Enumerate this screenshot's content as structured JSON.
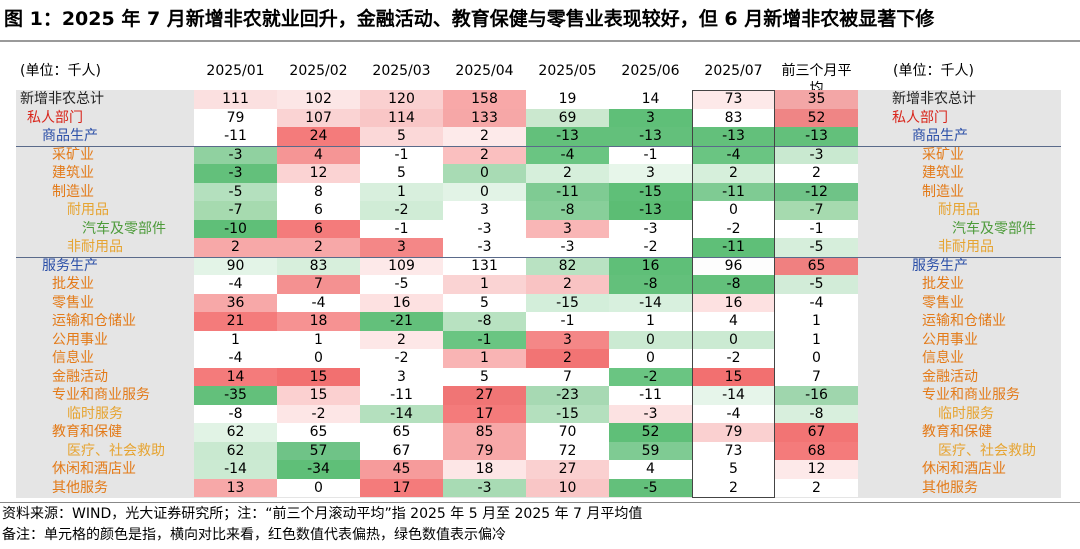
{
  "title": "图 1：2025 年 7 月新增非农就业回升，金融活动、教育保健与零售业表现较好，但 6 月新增非农被显著下修",
  "unit_label": "(单位：千人)",
  "notes": [
    "资料来源：WIND，光大证券研究所；注：“前三个月滚动平均”指 2025 年 5 月至 2025 年 7 月平均值",
    "备注：单元格的颜色是指，横向对比来看，红色数值代表偏热，绿色数值表示偏冷"
  ],
  "colors": {
    "label_default": "#222222",
    "label_blue": "#2b4fa8",
    "label_orange": "#e37a18",
    "label_yellow": "#e6a431",
    "label_green": "#4d9b3a",
    "label_red": "#d9261c"
  },
  "chart_data": {
    "type": "table",
    "columns": [
      "2025/01",
      "2025/02",
      "2025/03",
      "2025/04",
      "2025/05",
      "2025/06",
      "2025/07",
      "前三个月平均"
    ],
    "rows": [
      {
        "label": "新增非农总计",
        "style": "default",
        "level": 0,
        "values": [
          "111",
          "102",
          "120",
          "158",
          "19",
          "14",
          "73",
          "35"
        ],
        "colors": [
          "#fbe0e0",
          "#fce6e6",
          "#fad0d0",
          "#f8a8a8",
          "#ffffff",
          "#ffffff",
          "#fde9e9",
          "#f3a6a6"
        ]
      },
      {
        "label": "私人部门",
        "style": "red",
        "level": 1,
        "values": [
          "79",
          "107",
          "114",
          "133",
          "69",
          "3",
          "83",
          "52"
        ],
        "colors": [
          "#ffffff",
          "#fad3d3",
          "#f9c6c6",
          "#f6a7a7",
          "#cbe8cf",
          "#5fbf78",
          "#ffffff",
          "#ef8585"
        ]
      },
      {
        "label": "商品生产",
        "style": "blue",
        "level": 2,
        "values": [
          "-11",
          "24",
          "5",
          "2",
          "-13",
          "-13",
          "-13",
          "-13"
        ],
        "colors": [
          "#ffffff",
          "#f47b7b",
          "#fbd8d8",
          "#fdeaea",
          "#63c07b",
          "#63c07b",
          "#63c07b",
          "#63c07b"
        ]
      },
      {
        "label": "采矿业",
        "style": "orange",
        "level": 3,
        "values": [
          "-3",
          "4",
          "-1",
          "2",
          "-4",
          "-1",
          "-4",
          "-3"
        ],
        "colors": [
          "#90d1a0",
          "#f59595",
          "#ffffff",
          "#fabfbf",
          "#6ac582",
          "#ffffff",
          "#6ac582",
          "#c9e9d0"
        ]
      },
      {
        "label": "建筑业",
        "style": "orange",
        "level": 3,
        "values": [
          "-3",
          "12",
          "5",
          "0",
          "2",
          "3",
          "2",
          "2"
        ],
        "colors": [
          "#63c07b",
          "#fbd3d3",
          "#ffffff",
          "#a8dbb4",
          "#d6efdb",
          "#e7f6ea",
          "#d6efdb",
          "#ffffff"
        ]
      },
      {
        "label": "制造业",
        "style": "orange",
        "level": 3,
        "values": [
          "-5",
          "8",
          "1",
          "0",
          "-11",
          "-15",
          "-11",
          "-12"
        ],
        "colors": [
          "#b4e0be",
          "#ffffff",
          "#d8efdd",
          "#e2f3e6",
          "#7fcb93",
          "#5fbf78",
          "#7fcb93",
          "#6fc387"
        ]
      },
      {
        "label": "耐用品",
        "style": "yellow",
        "level": 4,
        "values": [
          "-7",
          "6",
          "-2",
          "3",
          "-8",
          "-13",
          "0",
          "-7"
        ],
        "colors": [
          "#a6daaf",
          "#ffffff",
          "#d0ecd6",
          "#ffffff",
          "#88cf9a",
          "#5cbd74",
          "#ffffff",
          "#a6daaf"
        ]
      },
      {
        "label": "汽车及零部件",
        "style": "green",
        "level": 5,
        "values": [
          "-10",
          "6",
          "-1",
          "-3",
          "3",
          "-3",
          "-2",
          "-1"
        ],
        "colors": [
          "#5fbf78",
          "#f47b7b",
          "#ffffff",
          "#ffffff",
          "#f9b6b6",
          "#ffffff",
          "#ffffff",
          "#ffffff"
        ]
      },
      {
        "label": "非耐用品",
        "style": "yellow",
        "level": 4,
        "values": [
          "2",
          "2",
          "3",
          "-3",
          "-3",
          "-2",
          "-11",
          "-5"
        ],
        "colors": [
          "#f7a8a8",
          "#f7a8a8",
          "#f48787",
          "#ffffff",
          "#ffffff",
          "#ffffff",
          "#5fbf78",
          "#d6eedb"
        ]
      },
      {
        "label": "服务生产",
        "style": "blue",
        "level": 2,
        "values": [
          "90",
          "83",
          "109",
          "131",
          "82",
          "16",
          "96",
          "65"
        ],
        "colors": [
          "#e3f4e7",
          "#d7efdc",
          "#fde9e9",
          "#ffffff",
          "#b9e2c2",
          "#5fbf78",
          "#fdfdfd",
          "#f08080"
        ]
      },
      {
        "label": "批发业",
        "style": "orange",
        "level": 3,
        "values": [
          "-4",
          "7",
          "-5",
          "1",
          "2",
          "-8",
          "-8",
          "-5"
        ],
        "colors": [
          "#ffffff",
          "#f49191",
          "#ffffff",
          "#fad3d3",
          "#f9c3c3",
          "#63c07b",
          "#63c07b",
          "#d2ecd8"
        ]
      },
      {
        "label": "零售业",
        "style": "orange",
        "level": 3,
        "values": [
          "36",
          "-4",
          "16",
          "5",
          "-15",
          "-14",
          "16",
          "-4"
        ],
        "colors": [
          "#f7a8a8",
          "#ffffff",
          "#fde1e1",
          "#ffffff",
          "#d3eeda",
          "#d8f0de",
          "#fde1e1",
          "#ffffff"
        ]
      },
      {
        "label": "运输和仓储业",
        "style": "orange",
        "level": 3,
        "values": [
          "21",
          "18",
          "-21",
          "-8",
          "-1",
          "1",
          "4",
          "1"
        ],
        "colors": [
          "#f47b7b",
          "#f69292",
          "#63c07b",
          "#b8e2c1",
          "#ffffff",
          "#ffffff",
          "#ffffff",
          "#ffffff"
        ]
      },
      {
        "label": "公用事业",
        "style": "orange",
        "level": 3,
        "values": [
          "1",
          "1",
          "2",
          "-1",
          "3",
          "0",
          "0",
          "1"
        ],
        "colors": [
          "#ffffff",
          "#ffffff",
          "#fde7e7",
          "#6ac582",
          "#f48787",
          "#cbead2",
          "#cbead2",
          "#ffffff"
        ]
      },
      {
        "label": "信息业",
        "style": "orange",
        "level": 3,
        "values": [
          "-4",
          "0",
          "-2",
          "1",
          "2",
          "0",
          "-2",
          "0"
        ],
        "colors": [
          "#ffffff",
          "#ffffff",
          "#ffffff",
          "#f9b4b4",
          "#f27474",
          "#ffffff",
          "#ffffff",
          "#ffffff"
        ]
      },
      {
        "label": "金融活动",
        "style": "orange",
        "level": 3,
        "values": [
          "14",
          "15",
          "3",
          "5",
          "7",
          "-2",
          "15",
          "7"
        ],
        "colors": [
          "#f47b7b",
          "#f27070",
          "#ffffff",
          "#ffffff",
          "#ffffff",
          "#6ac582",
          "#f27070",
          "#ffffff"
        ]
      },
      {
        "label": "专业和商业服务",
        "style": "orange",
        "level": 3,
        "values": [
          "-35",
          "15",
          "-11",
          "27",
          "-23",
          "-11",
          "-14",
          "-16"
        ],
        "colors": [
          "#63c07b",
          "#fbd0d0",
          "#ffffff",
          "#f07575",
          "#a7d9b3",
          "#ffffff",
          "#e6f5ea",
          "#9fd6ad"
        ]
      },
      {
        "label": "临时服务",
        "style": "yellow",
        "level": 4,
        "values": [
          "-8",
          "-2",
          "-14",
          "17",
          "-15",
          "-3",
          "-4",
          "-8"
        ],
        "colors": [
          "#ffffff",
          "#fde6e6",
          "#b4e0be",
          "#f47b7b",
          "#b4e0be",
          "#fce2e2",
          "#ffffff",
          "#d8efdd"
        ]
      },
      {
        "label": "教育和保健",
        "style": "orange",
        "level": 3,
        "values": [
          "62",
          "65",
          "65",
          "85",
          "70",
          "52",
          "79",
          "67"
        ],
        "colors": [
          "#e1f3e5",
          "#ffffff",
          "#ffffff",
          "#f7a8a8",
          "#ffffff",
          "#5fbf78",
          "#fad0d0",
          "#f27474"
        ]
      },
      {
        "label": "医疗、社会救助",
        "style": "yellow",
        "level": 4,
        "values": [
          "62",
          "57",
          "67",
          "79",
          "72",
          "59",
          "73",
          "68"
        ],
        "colors": [
          "#c9e9d0",
          "#6fc387",
          "#ffffff",
          "#f7a8a8",
          "#ffffff",
          "#7fcb93",
          "#ffffff",
          "#f47b7b"
        ]
      },
      {
        "label": "休闲和酒店业",
        "style": "orange",
        "level": 3,
        "values": [
          "-14",
          "-34",
          "45",
          "18",
          "27",
          "4",
          "5",
          "12"
        ],
        "colors": [
          "#cbead2",
          "#5fbf78",
          "#f69b9b",
          "#fde6e6",
          "#fad0d0",
          "#ffffff",
          "#ffffff",
          "#fde9e9"
        ]
      },
      {
        "label": "其他服务",
        "style": "orange",
        "level": 3,
        "values": [
          "13",
          "0",
          "17",
          "-3",
          "10",
          "-5",
          "2",
          "2"
        ],
        "colors": [
          "#f7a8a8",
          "#ffffff",
          "#f47b7b",
          "#a8dbb4",
          "#f9c6c6",
          "#63c07b",
          "#ffffff",
          "#ffffff"
        ]
      }
    ]
  }
}
